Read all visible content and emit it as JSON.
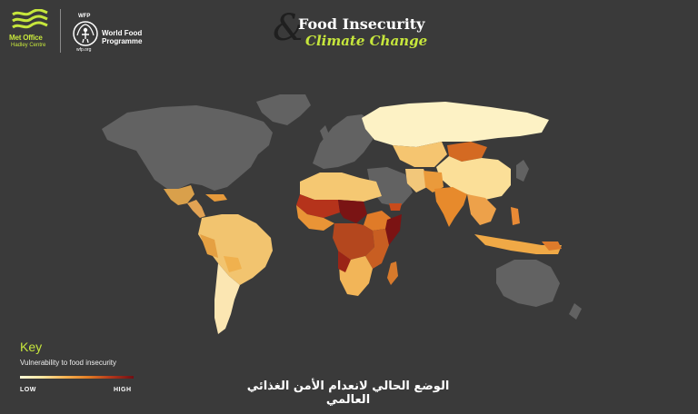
{
  "logos": {
    "metoffice_name": "Met Office",
    "metoffice_sub": "Hadley Centre",
    "wfp_acronym": "WFP",
    "wfp_name": "World Food Programme",
    "wfp_url": "wfp.org"
  },
  "title": {
    "line1": "Food Insecurity",
    "line2": "Climate Change",
    "ampersand": "&"
  },
  "key": {
    "title": "Key",
    "subtitle": "Vulnerability to food insecurity",
    "low_label": "LOW",
    "high_label": "HIGH",
    "gradient_colors": [
      "#fff8d8",
      "#fde6a0",
      "#f7b352",
      "#e37d25",
      "#b3361a",
      "#6f0f14"
    ]
  },
  "caption": "الوضع الحالي لانعدام الأمن الغذائي العالمي",
  "colors": {
    "background": "#3a3a3a",
    "no_data_land": "#626262",
    "accent": "#c6e63c"
  }
}
